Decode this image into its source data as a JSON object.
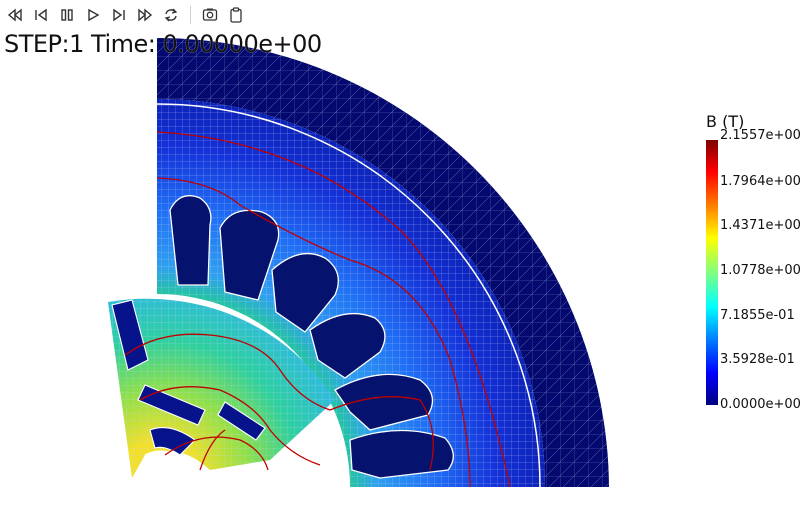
{
  "toolbar": {
    "buttons": [
      {
        "name": "first-frame-icon"
      },
      {
        "name": "previous-frame-icon"
      },
      {
        "name": "pause-icon"
      },
      {
        "name": "play-icon"
      },
      {
        "name": "next-frame-icon"
      },
      {
        "name": "last-frame-icon"
      },
      {
        "name": "loop-icon"
      },
      {
        "name": "screenshot-icon"
      },
      {
        "name": "clipboard-icon"
      }
    ]
  },
  "status": {
    "step_text": "STEP:1 Time: 0.00000e+00"
  },
  "colorbar": {
    "title": "B (T)",
    "labels": [
      "2.1557e+00",
      "1.7964e+00",
      "1.4371e+00",
      "1.0778e+00",
      "7.1855e-01",
      "3.5928e-01",
      "0.0000e+00"
    ],
    "min": 0.0,
    "max": 2.1557
  },
  "colors": {
    "stator_core": "#0a1f9a",
    "air": "#03096e",
    "field_line": "#c00000",
    "mesh_line": "#a8b4e8"
  }
}
